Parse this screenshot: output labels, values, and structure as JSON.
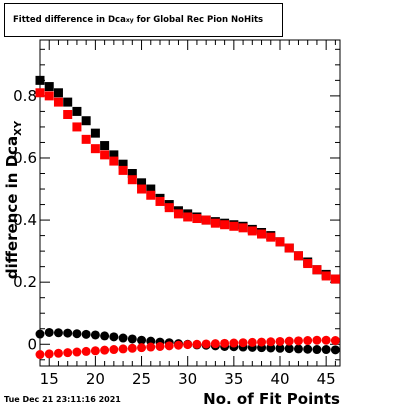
{
  "title": {
    "main": "Fitted difference in Dca",
    "sub": "xy",
    "rest": " for Global Rec Pion NoHits"
  },
  "timestamp": "Tue Dec 21 23:11:16 2021",
  "colors": {
    "black_series": "#000000",
    "red_series": "#ff0000"
  },
  "chart_data": {
    "type": "scatter",
    "xlabel": "No. of Fit Points",
    "ylabel_main": "difference in Dca",
    "ylabel_sub": "XY",
    "xlim": [
      14,
      46.5
    ],
    "ylim": [
      -0.07,
      0.98
    ],
    "xticks": [
      15,
      20,
      25,
      30,
      35,
      40,
      45
    ],
    "yticks": [
      0,
      0.2,
      0.4,
      0.6,
      0.8
    ],
    "ytick_labels": [
      "0",
      "0.2",
      "0.4",
      "0.6",
      "0.8"
    ],
    "grid": false,
    "x": [
      14,
      15,
      16,
      17,
      18,
      19,
      20,
      21,
      22,
      23,
      24,
      25,
      26,
      27,
      28,
      29,
      30,
      31,
      32,
      33,
      34,
      35,
      36,
      37,
      38,
      39,
      40,
      41,
      42,
      43,
      44,
      45,
      46
    ],
    "series": [
      {
        "marker": "square",
        "color": "#000000",
        "values": [
          0.85,
          0.83,
          0.81,
          0.78,
          0.75,
          0.72,
          0.68,
          0.64,
          0.61,
          0.58,
          0.55,
          0.52,
          0.5,
          0.47,
          0.45,
          0.43,
          0.42,
          0.41,
          0.4,
          0.395,
          0.39,
          0.385,
          0.38,
          0.37,
          0.36,
          0.35,
          0.33,
          0.31,
          0.285,
          0.265,
          0.24,
          0.225,
          0.21
        ]
      },
      {
        "marker": "square",
        "color": "#ff0000",
        "values": [
          0.81,
          0.8,
          0.78,
          0.74,
          0.7,
          0.66,
          0.63,
          0.61,
          0.59,
          0.56,
          0.53,
          0.5,
          0.48,
          0.46,
          0.44,
          0.42,
          0.41,
          0.405,
          0.4,
          0.39,
          0.385,
          0.38,
          0.375,
          0.365,
          0.355,
          0.345,
          0.33,
          0.31,
          0.285,
          0.26,
          0.24,
          0.22,
          0.21
        ]
      },
      {
        "marker": "circle",
        "color": "#000000",
        "values": [
          0.033,
          0.038,
          0.037,
          0.036,
          0.034,
          0.032,
          0.03,
          0.027,
          0.024,
          0.02,
          0.017,
          0.013,
          0.01,
          0.007,
          0.005,
          0.002,
          0.0,
          -0.002,
          -0.003,
          -0.005,
          -0.007,
          -0.008,
          -0.009,
          -0.01,
          -0.011,
          -0.012,
          -0.013,
          -0.014,
          -0.015,
          -0.016,
          -0.017,
          -0.017,
          -0.018
        ]
      },
      {
        "marker": "circle",
        "color": "#ff0000",
        "values": [
          -0.033,
          -0.031,
          -0.029,
          -0.027,
          -0.025,
          -0.023,
          -0.021,
          -0.019,
          -0.017,
          -0.015,
          -0.013,
          -0.011,
          -0.009,
          -0.007,
          -0.005,
          -0.003,
          -0.001,
          0.0,
          0.001,
          0.002,
          0.003,
          0.004,
          0.005,
          0.006,
          0.007,
          0.008,
          0.009,
          0.01,
          0.011,
          0.012,
          0.013,
          0.013,
          0.012
        ]
      }
    ]
  }
}
